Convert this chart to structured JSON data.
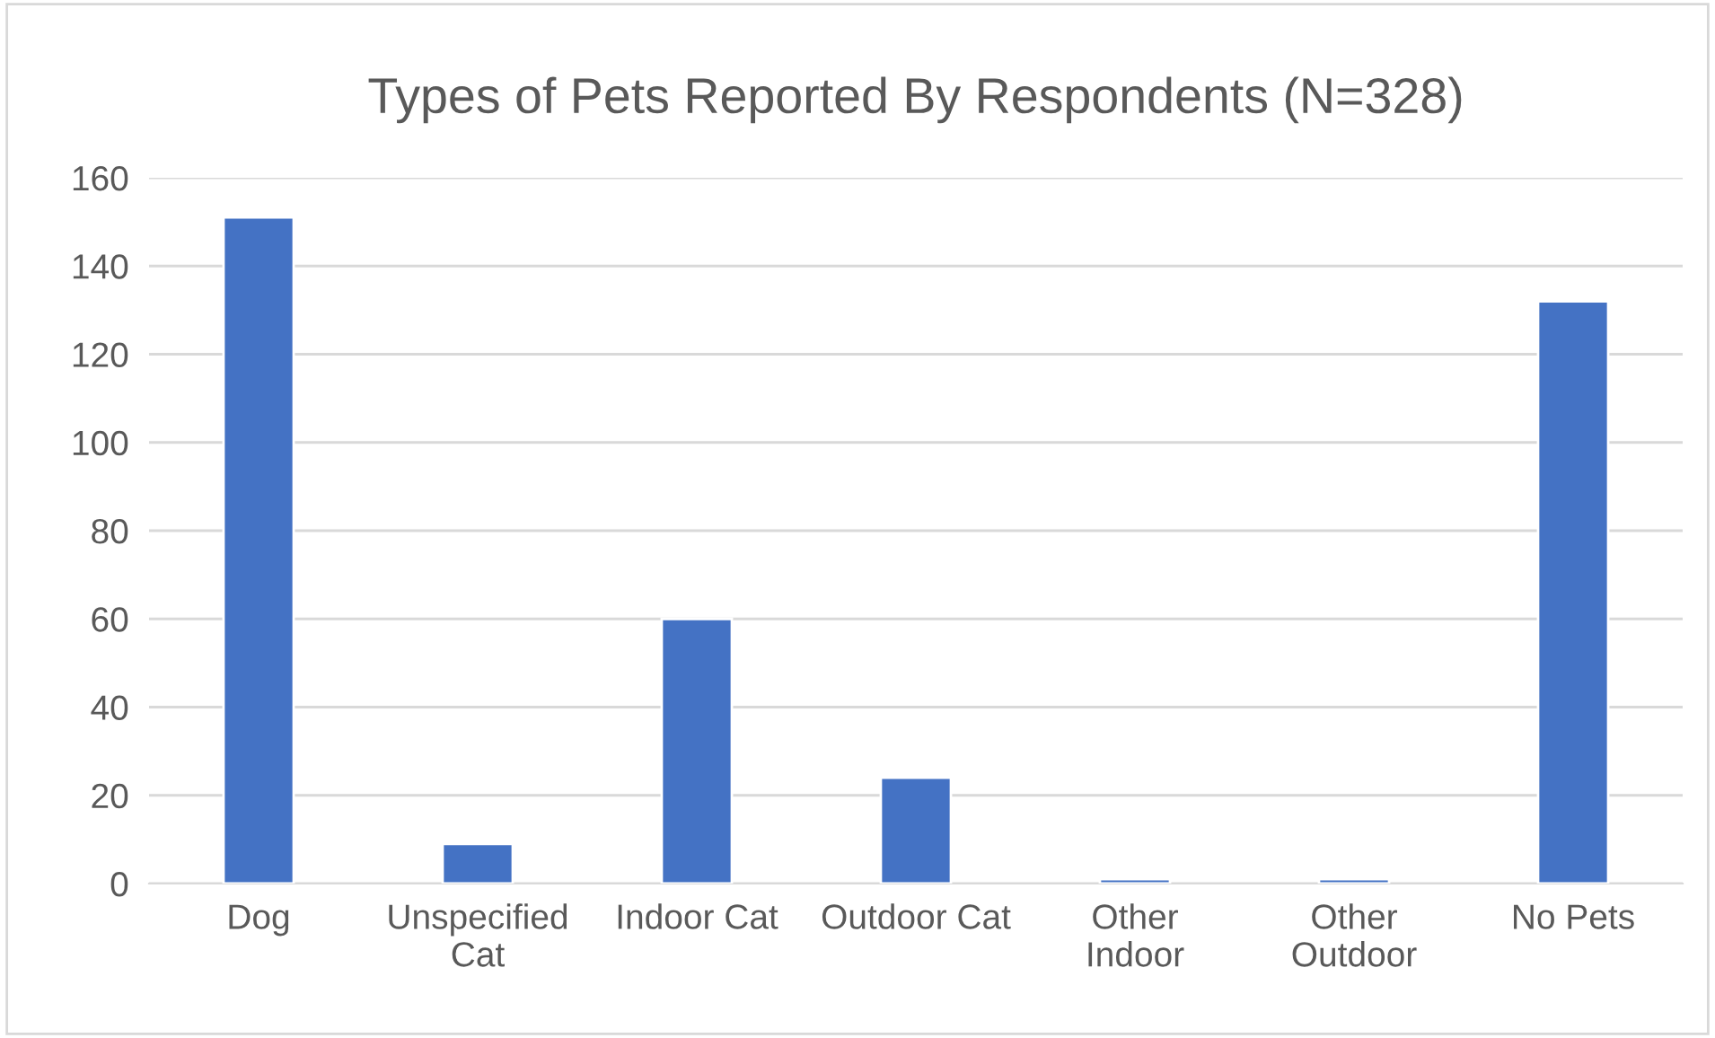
{
  "chart_data": {
    "type": "bar",
    "title": "Types of Pets Reported By Respondents (N=328)",
    "categories": [
      "Dog",
      "Unspecified Cat",
      "Indoor Cat",
      "Outdoor Cat",
      "Other Indoor",
      "Other Outdoor",
      "No Pets"
    ],
    "values": [
      151,
      9,
      60,
      24,
      1,
      1,
      132
    ],
    "color": "#4472c4",
    "ylim": [
      0,
      160
    ],
    "yticks": [
      0,
      20,
      40,
      60,
      80,
      100,
      120,
      140,
      160
    ],
    "grid": "y"
  }
}
